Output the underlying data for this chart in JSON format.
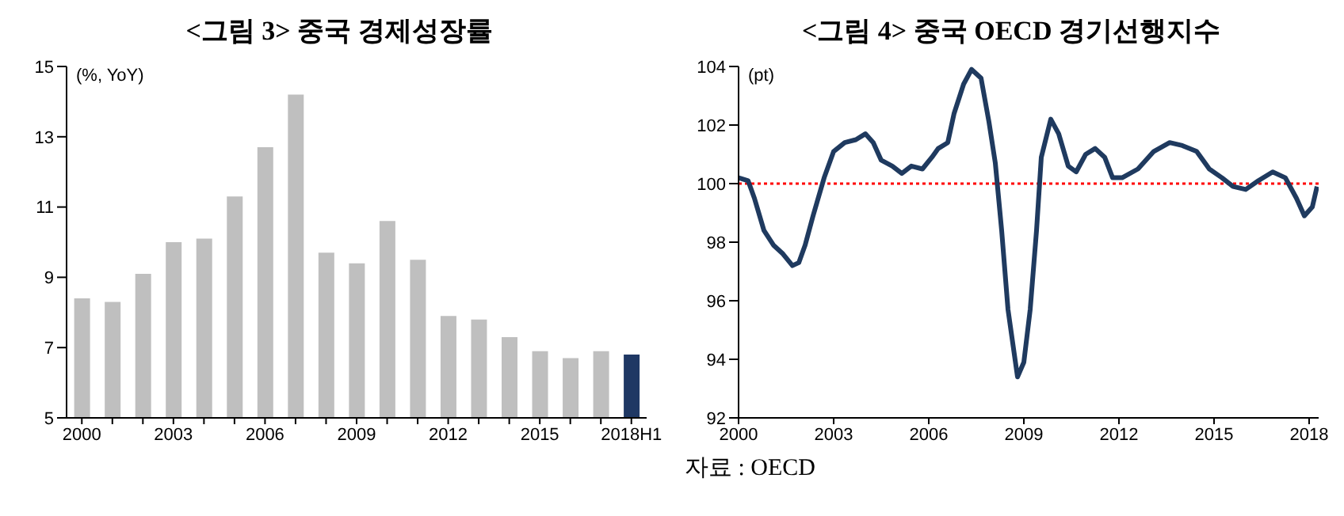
{
  "chart_data": [
    {
      "type": "bar",
      "title": "<그림 3> 중국 경제성장률",
      "ylabel": "(%, YoY)",
      "categories": [
        "2000",
        null,
        null,
        "2003",
        null,
        null,
        "2006",
        null,
        null,
        "2009",
        null,
        null,
        "2012",
        null,
        null,
        "2015",
        null,
        null,
        "2018H1"
      ],
      "values": [
        8.4,
        8.3,
        9.1,
        10.0,
        10.1,
        11.3,
        12.7,
        14.2,
        9.7,
        9.4,
        10.6,
        9.5,
        7.9,
        7.8,
        7.3,
        6.9,
        6.7,
        6.9,
        6.8
      ],
      "colors": [
        "#bfbfbf",
        "#bfbfbf",
        "#bfbfbf",
        "#bfbfbf",
        "#bfbfbf",
        "#bfbfbf",
        "#bfbfbf",
        "#bfbfbf",
        "#bfbfbf",
        "#bfbfbf",
        "#bfbfbf",
        "#bfbfbf",
        "#bfbfbf",
        "#bfbfbf",
        "#bfbfbf",
        "#bfbfbf",
        "#bfbfbf",
        "#bfbfbf",
        "#1f3864"
      ],
      "ylim": [
        5,
        15
      ],
      "yticks": [
        5,
        7,
        9,
        11,
        13,
        15
      ],
      "grid": false,
      "legend": false
    },
    {
      "type": "line",
      "title": "<그림 4> 중국 OECD 경기선행지수",
      "ylabel": "(pt)",
      "annotations": [
        "자료 : OECD"
      ],
      "marker": "none",
      "line_style": "solid",
      "grid": false,
      "legend": false,
      "x": [
        2000,
        2000.3,
        2000.5,
        2000.8,
        2001.1,
        2001.4,
        2001.7,
        2001.9,
        2002.1,
        2002.35,
        2002.7,
        2003.0,
        2003.35,
        2003.7,
        2004.0,
        2004.25,
        2004.5,
        2004.85,
        2005.15,
        2005.45,
        2005.8,
        2006.1,
        2006.3,
        2006.6,
        2006.8,
        2007.1,
        2007.35,
        2007.65,
        2007.9,
        2008.1,
        2008.3,
        2008.5,
        2008.8,
        2009.0,
        2009.2,
        2009.4,
        2009.55,
        2009.85,
        2010.1,
        2010.4,
        2010.65,
        2010.95,
        2011.25,
        2011.55,
        2011.8,
        2012.1,
        2012.6,
        2013.1,
        2013.6,
        2014.0,
        2014.45,
        2014.85,
        2015.25,
        2015.6,
        2016.0,
        2016.4,
        2016.85,
        2017.25,
        2017.6,
        2017.85,
        2018.1,
        2018.25
      ],
      "series": [
        {
          "color": "#1f3a5f",
          "values": [
            100.2,
            100.1,
            99.5,
            98.4,
            97.9,
            97.6,
            97.2,
            97.3,
            97.9,
            98.9,
            100.2,
            101.1,
            101.4,
            101.5,
            101.7,
            101.4,
            100.8,
            100.6,
            100.35,
            100.6,
            100.5,
            100.9,
            101.2,
            101.4,
            102.4,
            103.4,
            103.9,
            103.6,
            102.1,
            100.7,
            98.4,
            95.7,
            93.4,
            93.9,
            95.7,
            98.4,
            100.9,
            102.2,
            101.7,
            100.6,
            100.4,
            101.0,
            101.2,
            100.9,
            100.2,
            100.2,
            100.5,
            101.1,
            101.4,
            101.3,
            101.1,
            100.5,
            100.2,
            99.9,
            99.8,
            100.1,
            100.4,
            100.2,
            99.5,
            98.9,
            99.2,
            99.9
          ]
        }
      ],
      "xlim": [
        2000,
        2018.3
      ],
      "xticks": [
        2000,
        2003,
        2006,
        2009,
        2012,
        2015,
        2018
      ],
      "ylim": [
        92,
        104
      ],
      "yticks": [
        92,
        94,
        96,
        98,
        100,
        102,
        104
      ],
      "ref_lines": [
        {
          "axis": "y",
          "value": 100,
          "color": "#ff0000",
          "line_style": "dotted"
        }
      ]
    }
  ]
}
